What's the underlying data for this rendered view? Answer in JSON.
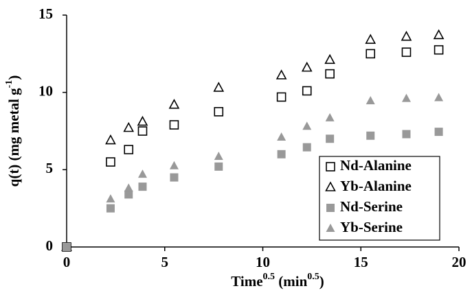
{
  "chart_data": {
    "type": "scatter",
    "x_label": [
      "Time",
      "0.5",
      " (min",
      "0.5",
      ")"
    ],
    "y_label": [
      "q(t) (mg metal g",
      "-1",
      ")"
    ],
    "x": [
      0,
      2.24,
      3.16,
      3.87,
      5.48,
      7.75,
      10.95,
      12.25,
      13.42,
      15.49,
      17.32,
      18.97
    ],
    "series": [
      {
        "name": "Nd-Alanine",
        "color": "#000000",
        "marker": "square",
        "filled": false,
        "values": [
          0,
          5.5,
          6.3,
          7.5,
          7.9,
          8.75,
          9.7,
          10.1,
          11.2,
          12.5,
          12.6,
          12.75
        ]
      },
      {
        "name": "Yb-Alanine",
        "color": "#000000",
        "marker": "triangle",
        "filled": false,
        "values": [
          0,
          6.9,
          7.7,
          8.1,
          9.2,
          10.3,
          11.1,
          11.6,
          12.1,
          13.4,
          13.6,
          13.7
        ]
      },
      {
        "name": "Nd-Serine",
        "color": "#999999",
        "marker": "square",
        "filled": true,
        "values": [
          0,
          2.5,
          3.4,
          3.9,
          4.5,
          5.2,
          6.0,
          6.45,
          7.0,
          7.2,
          7.3,
          7.45
        ]
      },
      {
        "name": "Yb-Serine",
        "color": "#999999",
        "marker": "triangle",
        "filled": true,
        "values": [
          0,
          3.1,
          3.8,
          4.7,
          5.25,
          5.85,
          7.1,
          7.8,
          8.35,
          9.45,
          9.6,
          9.65
        ]
      }
    ],
    "xlim": [
      0,
      20
    ],
    "xticks": [
      0,
      5,
      10,
      15,
      20
    ],
    "ylim": [
      0,
      15
    ],
    "yticks": [
      0,
      5,
      10,
      15
    ],
    "grid": false,
    "legend": "lower right"
  }
}
